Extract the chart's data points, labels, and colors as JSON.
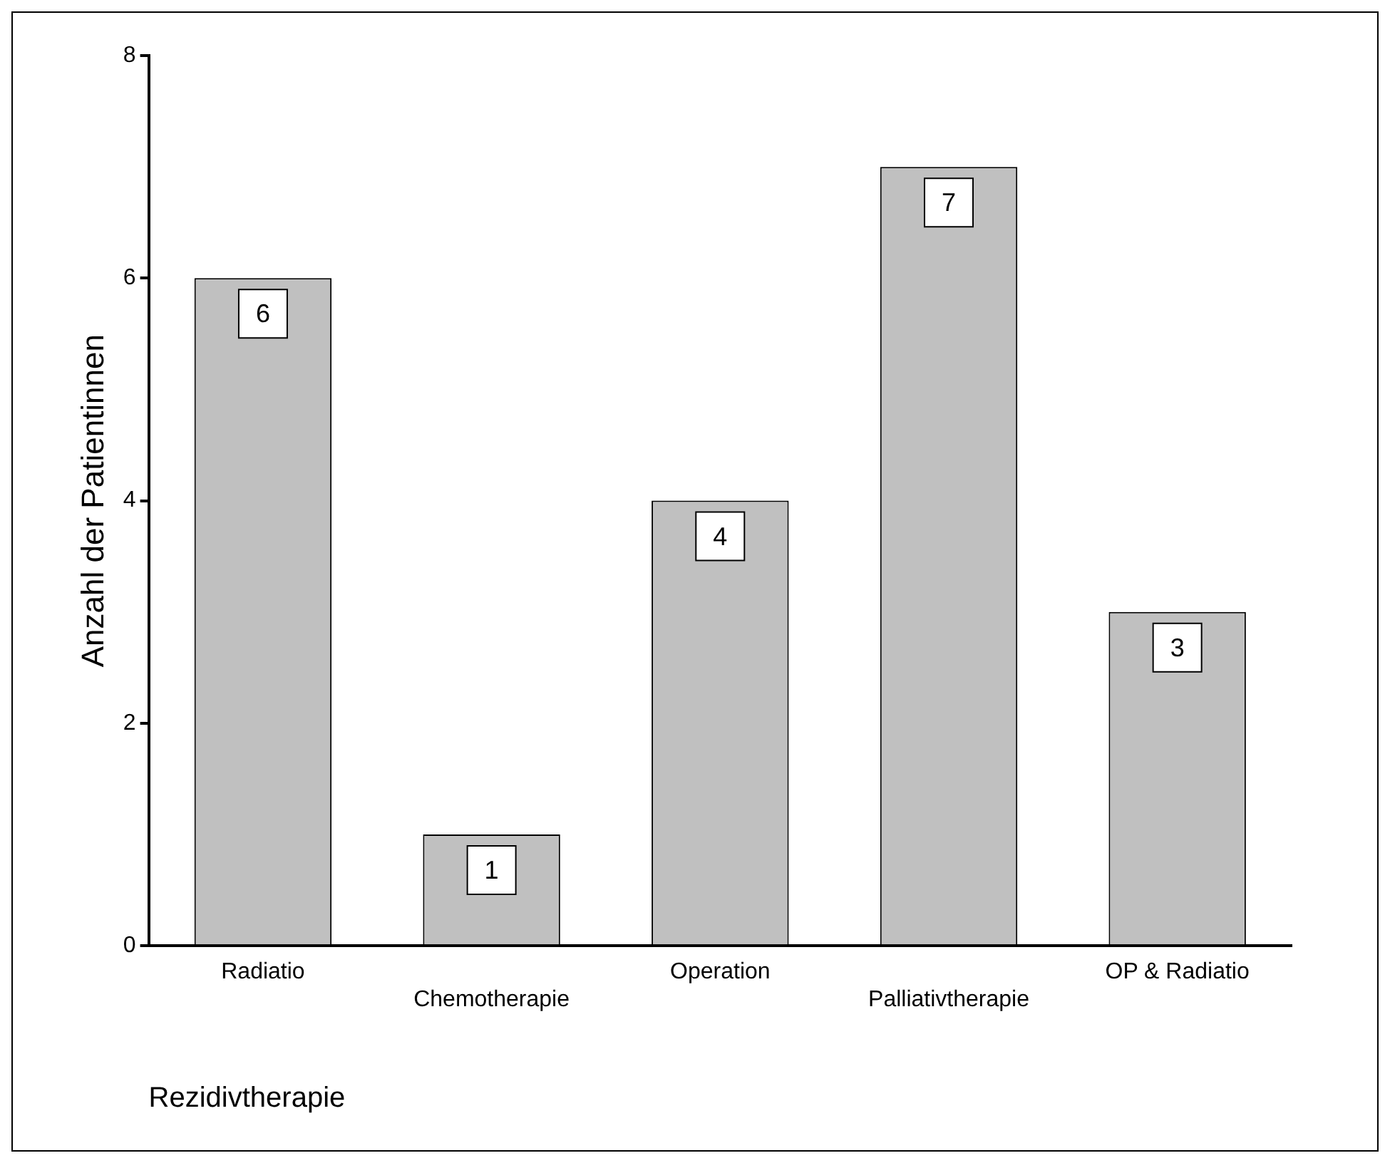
{
  "chart_data": {
    "type": "bar",
    "xlabel": "Rezidivtherapie",
    "ylabel": "Anzahl der Patientinnen",
    "categories": [
      "Radiatio",
      "Chemotherapie",
      "Operation",
      "Palliativtherapie",
      "OP & Radiatio"
    ],
    "values": [
      6,
      1,
      4,
      7,
      3
    ],
    "color": "#c0c0c0",
    "ylim": [
      0,
      8
    ],
    "yticks": [
      0,
      2,
      4,
      6,
      8
    ],
    "grid": false,
    "legend": false,
    "data_labels": true
  }
}
